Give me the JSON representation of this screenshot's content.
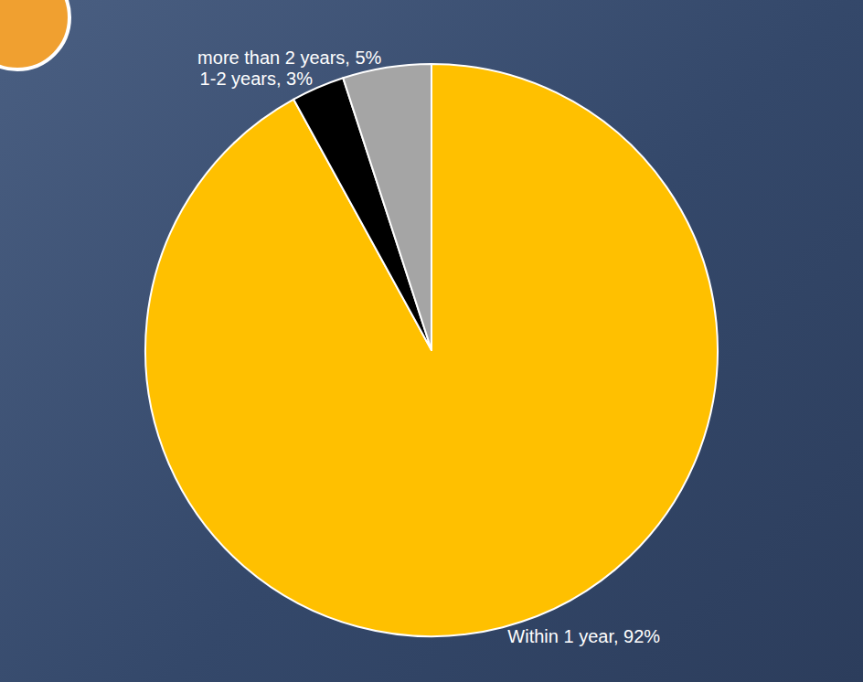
{
  "chart_data": {
    "type": "pie",
    "categories": [
      "Within 1 year",
      "1-2 years",
      "more than 2 years"
    ],
    "values": [
      92,
      3,
      5
    ],
    "value_labels": [
      "Within 1 year, 92%",
      "1-2 years, 3%",
      "more than 2 years, 5%"
    ],
    "colors": [
      "#FFC000",
      "#000000",
      "#A5A5A5"
    ],
    "data_labels": true
  }
}
